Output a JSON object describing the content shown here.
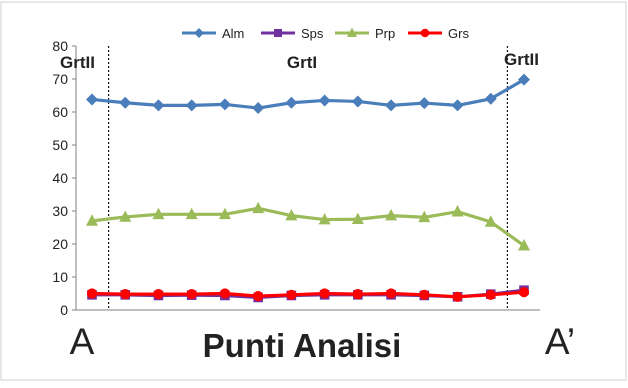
{
  "chart_data": {
    "type": "line",
    "x": [
      1,
      2,
      3,
      4,
      5,
      6,
      7,
      8,
      9,
      10,
      11,
      12,
      13,
      14
    ],
    "ylim": [
      0,
      80
    ],
    "yticks": [
      0,
      10,
      20,
      30,
      40,
      50,
      60,
      70,
      80
    ],
    "grid": false,
    "legend_position": "top",
    "series": [
      {
        "name": "Alm",
        "marker": "diamond",
        "color": "#4a7ebb",
        "values": [
          63.8,
          62.8,
          62.0,
          62.0,
          62.3,
          61.2,
          62.8,
          63.5,
          63.2,
          62.0,
          62.7,
          62.0,
          64.0,
          69.8
        ]
      },
      {
        "name": "Sps",
        "marker": "square",
        "color": "#7030a0",
        "values": [
          4.6,
          4.6,
          4.4,
          4.5,
          4.4,
          3.8,
          4.4,
          4.6,
          4.6,
          4.6,
          4.4,
          4.0,
          4.8,
          6.0
        ]
      },
      {
        "name": "Prp",
        "marker": "triangle",
        "color": "#9bbb59",
        "values": [
          27.0,
          28.2,
          29.0,
          29.0,
          29.0,
          30.8,
          28.6,
          27.4,
          27.5,
          28.6,
          28.1,
          29.8,
          26.7,
          19.5
        ]
      },
      {
        "name": "Grs",
        "marker": "circle",
        "color": "#ff0000",
        "values": [
          5.0,
          4.8,
          4.8,
          4.8,
          5.0,
          4.2,
          4.6,
          5.0,
          4.8,
          5.0,
          4.6,
          4.0,
          4.6,
          5.4
        ]
      }
    ],
    "regions": [
      "GrtII",
      "GrtI",
      "GrtII"
    ],
    "end_labels": {
      "start": "A",
      "end": "A’"
    },
    "xlabel": "Punti Analisi"
  }
}
